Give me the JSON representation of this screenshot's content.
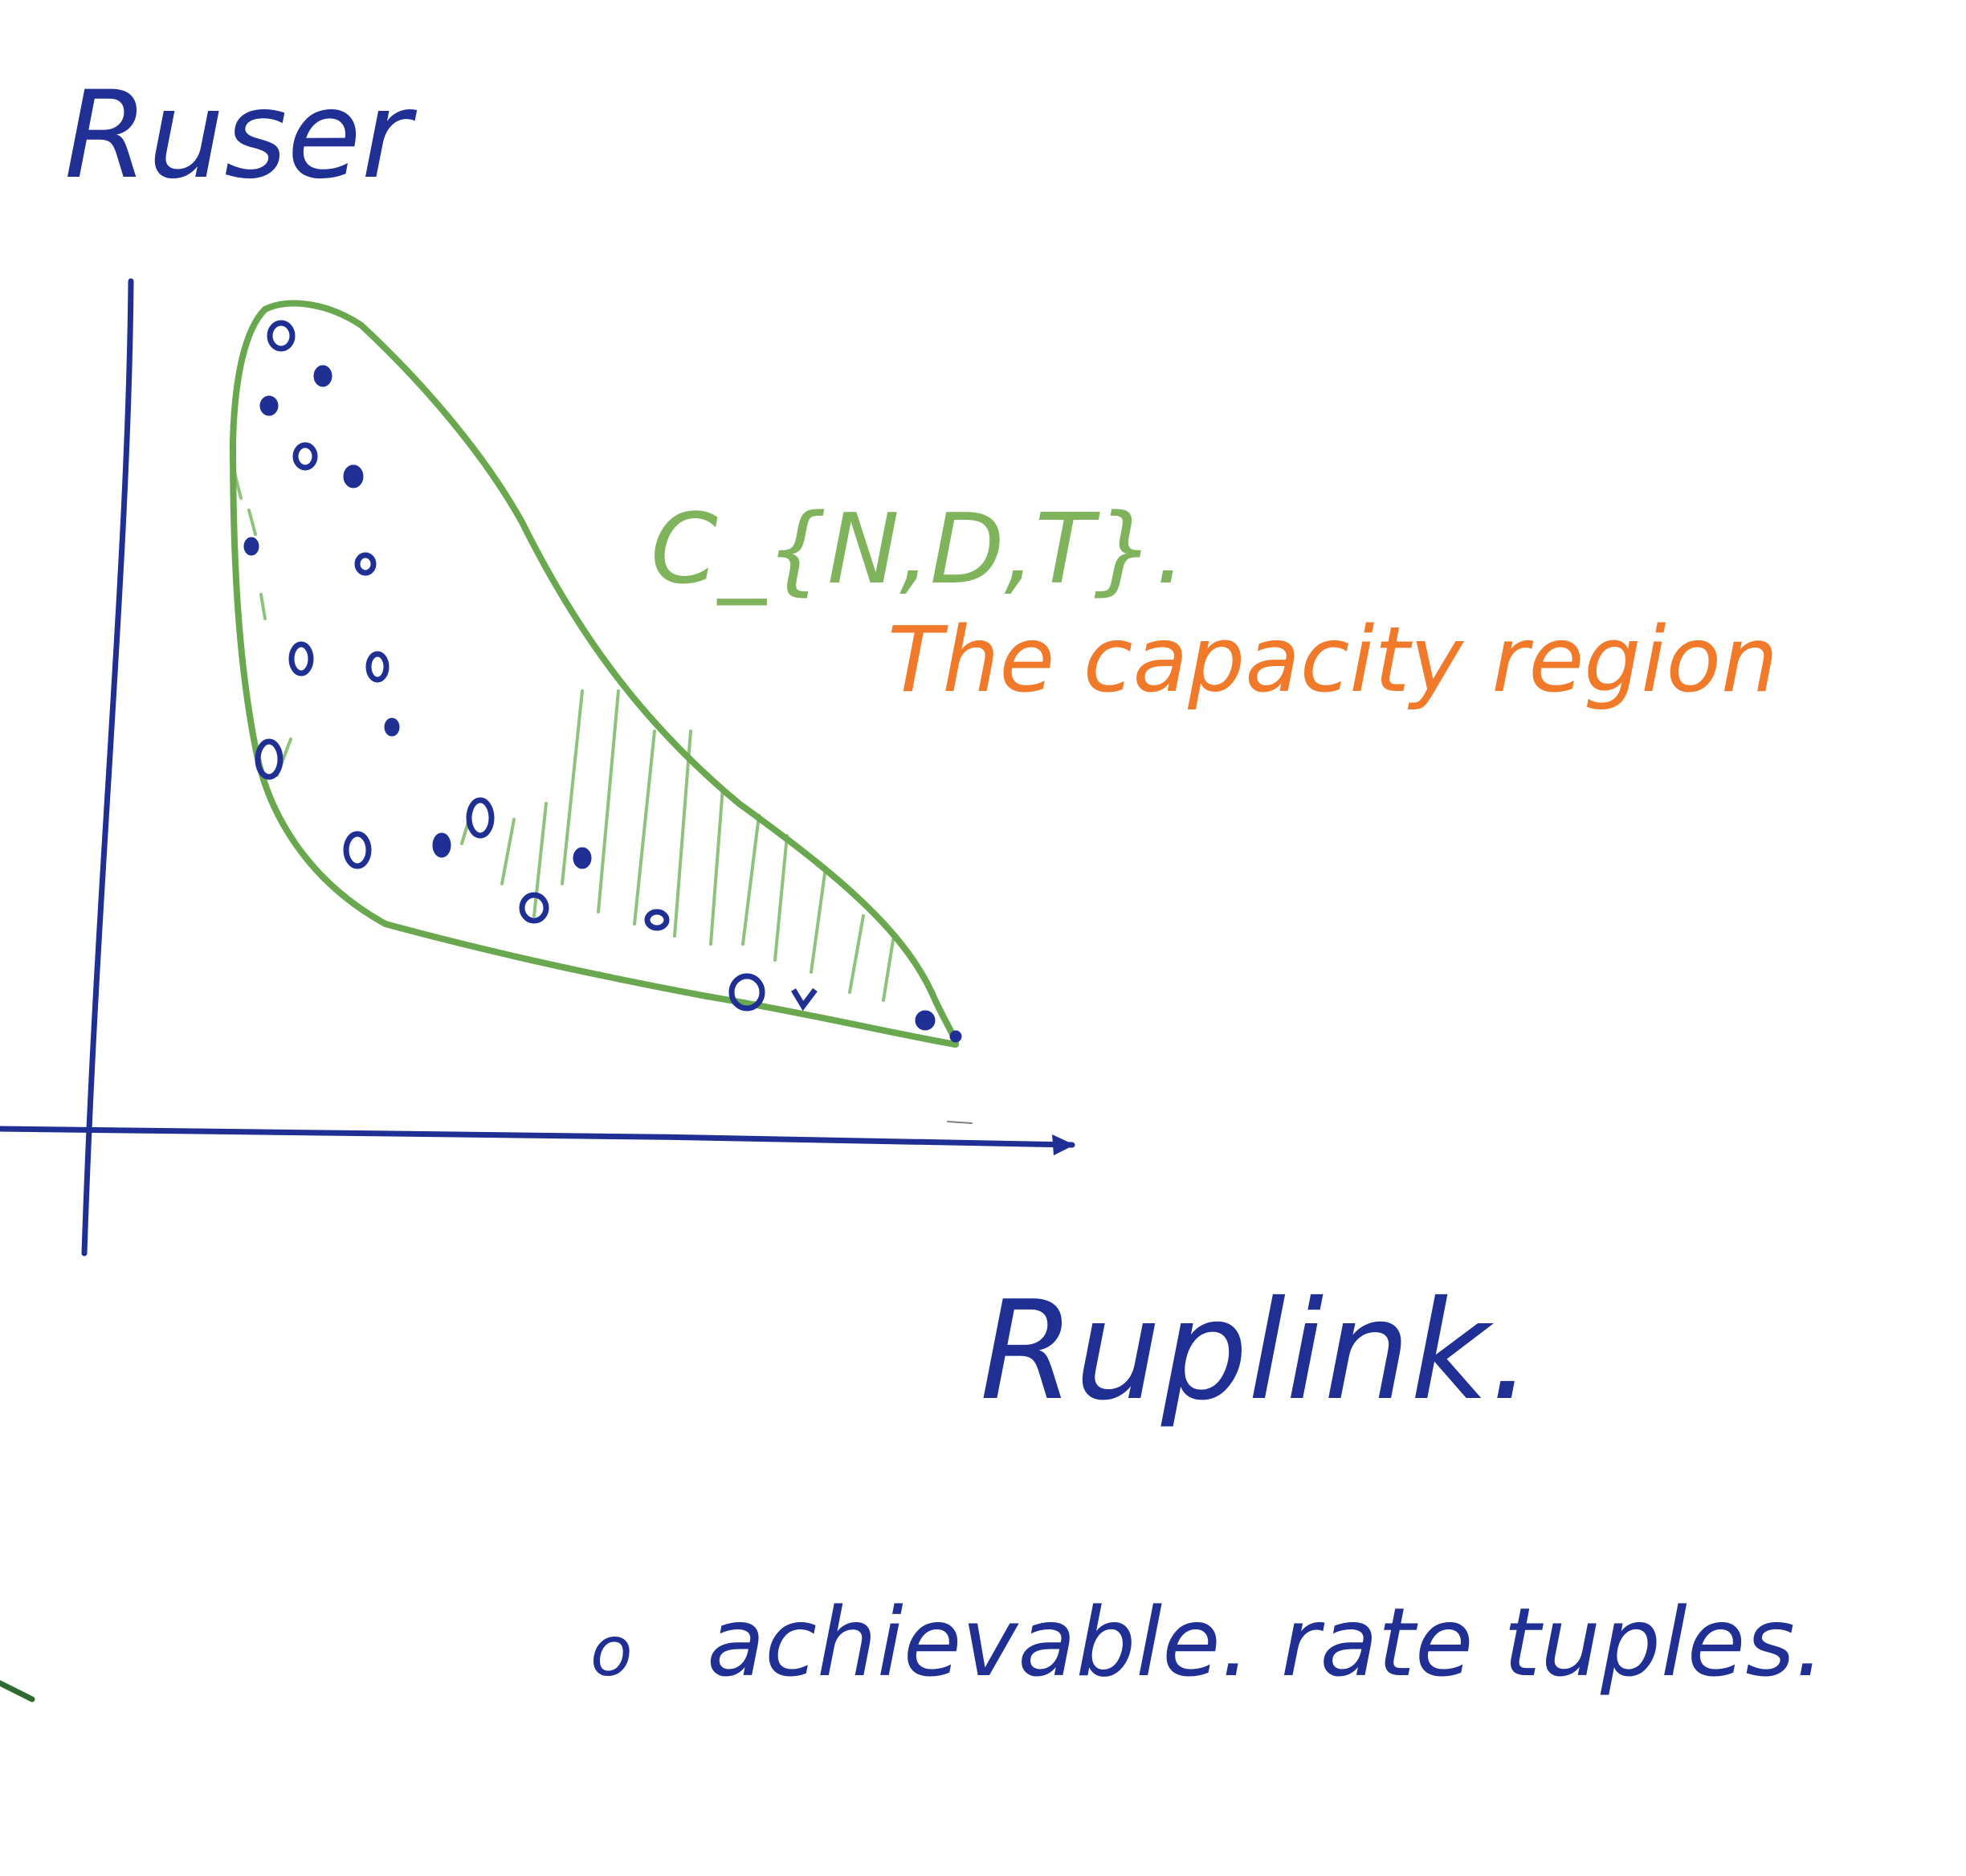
{
  "labels": {
    "y_axis": "Ruser",
    "x_axis": "Ruplink.",
    "region_symbol": "C_{N,D,T}.",
    "region_name": "The capacity region",
    "legend_marker": "o",
    "legend_text": "achievable. rate tuples."
  },
  "colors": {
    "axis_ink": "#1f2f94",
    "region_outline": "#6aa84f",
    "region_hatch": "#8fc27a",
    "annotation": "#f07a2a",
    "background": "#ffffff"
  }
}
